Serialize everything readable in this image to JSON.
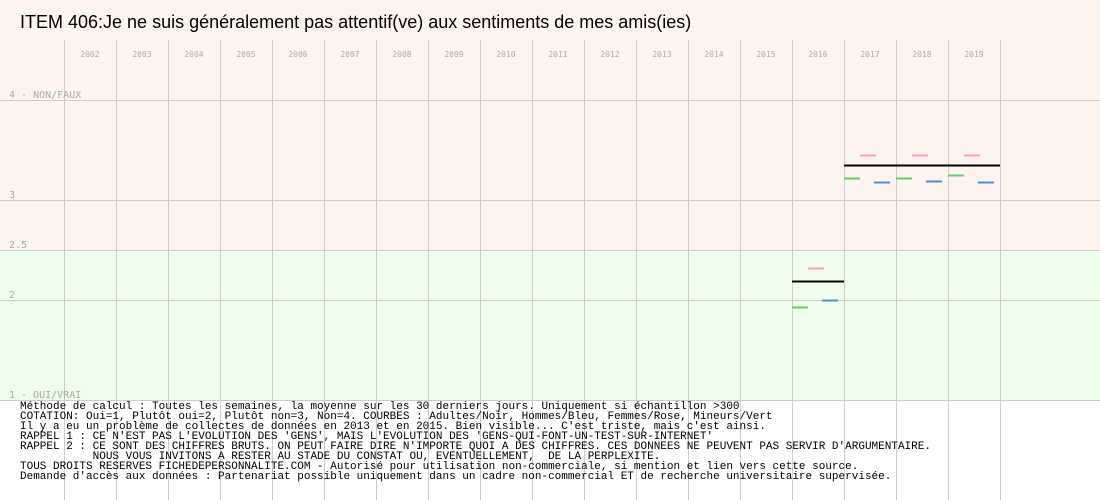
{
  "title": "ITEM 406:Je ne suis généralement pas attentif(ve) aux sentiments de mes amis(ies)",
  "colors": {
    "band_top": "#fdf4ef",
    "band_bottom": "#effeea",
    "grid": "#cccccc",
    "tick_text": "#aaaaaa",
    "adults": "#000000",
    "men": "#4a90e2",
    "women": "#ff9ebc",
    "minors": "#66cc66"
  },
  "chart_data": {
    "type": "scatter",
    "x_ticks": [
      "2002",
      "2003",
      "2004",
      "2005",
      "2006",
      "2007",
      "2008",
      "2009",
      "2010",
      "2011",
      "2012",
      "2013",
      "2014",
      "2015",
      "2016",
      "2017",
      "2018",
      "2019"
    ],
    "y_ticks": [
      {
        "value": 4,
        "label": "4 - NON/FAUX"
      },
      {
        "value": 3,
        "label": "3"
      },
      {
        "value": 2.5,
        "label": "2.5"
      },
      {
        "value": 2,
        "label": "2"
      },
      {
        "value": 1,
        "label": "1 - OUI/VRAI"
      }
    ],
    "ylim": [
      1,
      4
    ],
    "series": [
      {
        "name": "Adultes",
        "color_key": "adults",
        "values": [
          [
            2016,
            2.19
          ],
          [
            2017,
            3.35
          ],
          [
            2018,
            3.35
          ],
          [
            2019,
            3.35
          ]
        ]
      },
      {
        "name": "Femmes",
        "color_key": "women",
        "values": [
          [
            2016,
            2.32
          ],
          [
            2017,
            3.45
          ],
          [
            2018,
            3.45
          ],
          [
            2019,
            3.45
          ]
        ]
      },
      {
        "name": "Hommes",
        "color_key": "men",
        "values": [
          [
            2016,
            2.0
          ],
          [
            2017,
            3.18
          ],
          [
            2018,
            3.19
          ],
          [
            2019,
            3.18
          ]
        ]
      },
      {
        "name": "Mineurs",
        "color_key": "minors",
        "values": [
          [
            2016,
            1.93
          ],
          [
            2017,
            3.22
          ],
          [
            2018,
            3.22
          ],
          [
            2019,
            3.25
          ]
        ]
      }
    ]
  },
  "notes": [
    "Méthode de calcul : Toutes les semaines, la moyenne sur les 30 derniers jours. Uniquement si échantillon >300",
    "COTATION: Oui=1, Plutôt oui=2, Plutôt non=3, Non=4. COURBES : Adultes/Noir, Hommes/Bleu, Femmes/Rose, Mineurs/Vert",
    "Il y a eu un problème de collectes de données en 2013 et en 2015. Bien visible... C'est triste, mais c'est ainsi.",
    "RAPPEL 1 : CE N'EST PAS L'EVOLUTION DES 'GENS', MAIS L'EVOLUTION DES 'GENS-QUI-FONT-UN-TEST-SUR-INTERNET'",
    "RAPPEL 2 : CE SONT DES CHIFFRES BRUTS. ON PEUT FAIRE DIRE N'IMPORTE QUOI A DES CHIFFRES. CES DONNEES NE PEUVENT PAS SERVIR D'ARGUMENTAIRE.",
    "           NOUS VOUS INVITONS A RESTER AU STADE DU CONSTAT OU, EVENTUELLEMENT,  DE LA PERPLEXITE.",
    "TOUS DROITS RESERVES FICHEDEPERSONNALITE.COM - Autorisé pour utilisation non-commerciale, si mention et lien vers cette source.",
    "Demande d'accès aux données : Partenariat possible uniquement dans un cadre non-commercial ET de recherche universitaire supervisée."
  ]
}
